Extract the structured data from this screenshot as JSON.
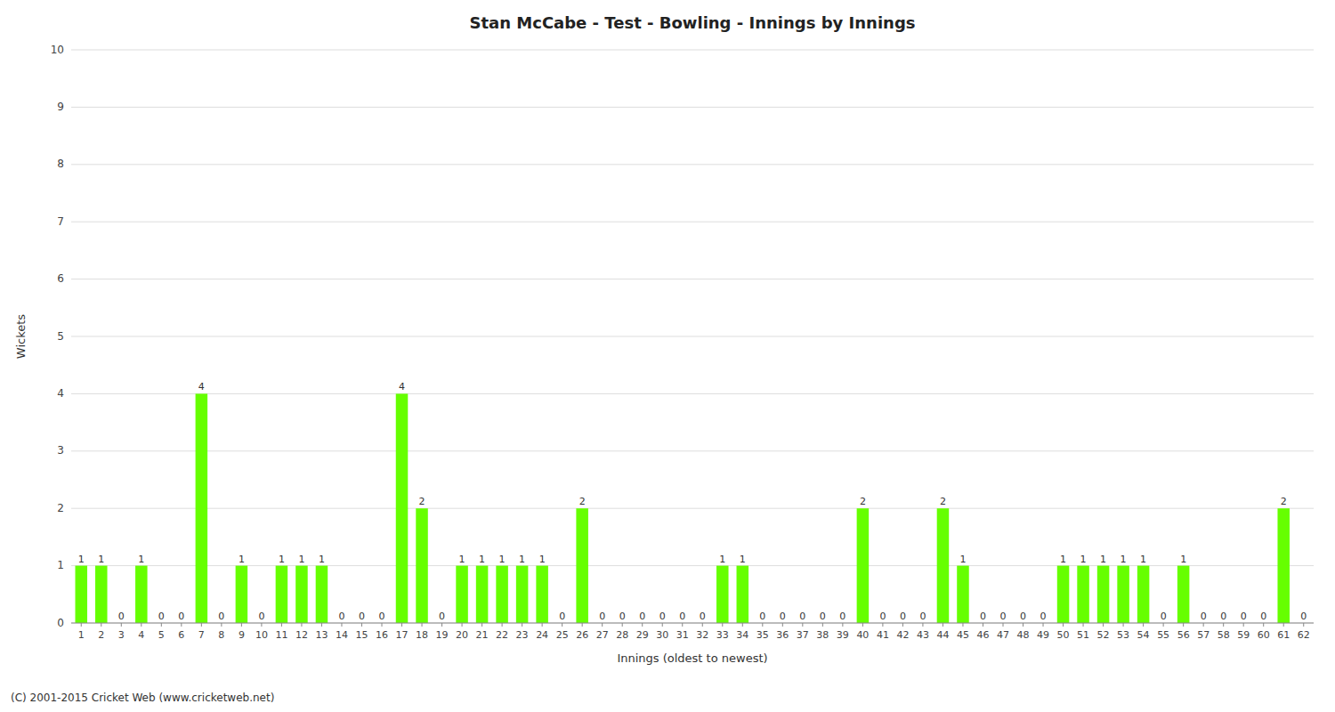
{
  "chart_data": {
    "type": "bar",
    "title": "Stan McCabe - Test - Bowling - Innings by Innings",
    "x_label": "Innings (oldest to newest)",
    "y_label": "Wickets",
    "footer": "(C) 2001-2015 Cricket Web (www.cricketweb.net)",
    "categories": [
      "1",
      "2",
      "3",
      "4",
      "5",
      "6",
      "7",
      "8",
      "9",
      "10",
      "11",
      "12",
      "13",
      "14",
      "15",
      "16",
      "17",
      "18",
      "19",
      "20",
      "21",
      "22",
      "23",
      "24",
      "25",
      "26",
      "27",
      "28",
      "29",
      "30",
      "31",
      "32",
      "33",
      "34",
      "35",
      "36",
      "37",
      "38",
      "39",
      "40",
      "41",
      "42",
      "43",
      "44",
      "45",
      "46",
      "47",
      "48",
      "49",
      "50",
      "51",
      "52",
      "53",
      "54",
      "55",
      "56",
      "57",
      "58",
      "59",
      "60",
      "61",
      "62"
    ],
    "values": [
      1,
      1,
      0,
      1,
      0,
      0,
      4,
      0,
      1,
      0,
      1,
      1,
      1,
      0,
      0,
      0,
      4,
      2,
      0,
      1,
      1,
      1,
      1,
      1,
      0,
      2,
      0,
      0,
      0,
      0,
      0,
      0,
      1,
      1,
      0,
      0,
      0,
      0,
      0,
      2,
      0,
      0,
      0,
      2,
      1,
      0,
      0,
      0,
      0,
      1,
      1,
      1,
      1,
      1,
      0,
      1,
      0,
      0,
      0,
      0,
      2,
      0
    ],
    "color": "#66ff00",
    "ylim": [
      0,
      10
    ],
    "yticks": [
      0,
      1,
      2,
      3,
      4,
      5,
      6,
      7,
      8,
      9,
      10
    ],
    "grid": true,
    "data_labels": true
  }
}
